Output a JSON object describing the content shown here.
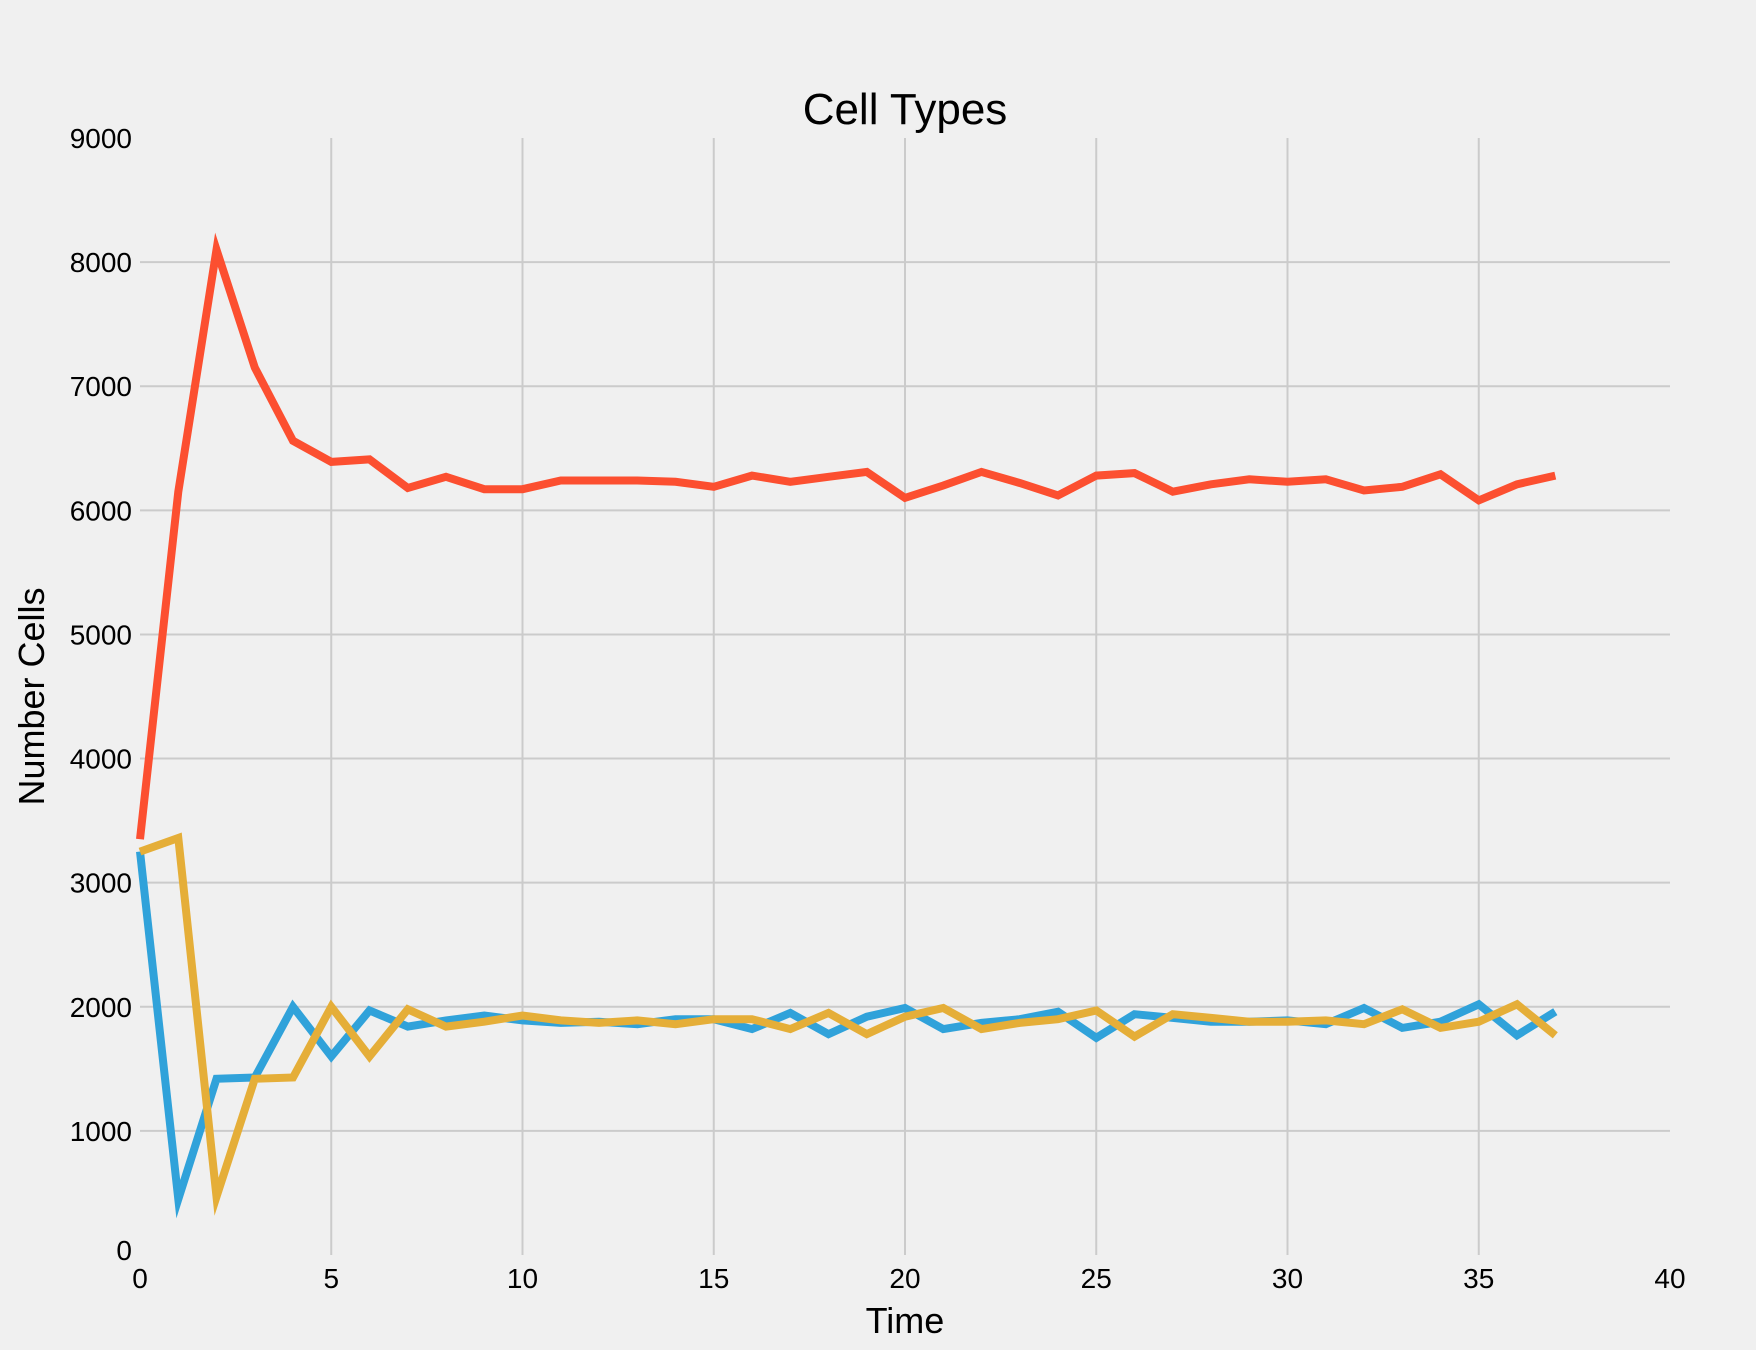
{
  "chart_data": {
    "type": "line",
    "title": "Cell Types",
    "xlabel": "Time",
    "ylabel": "Number Cells",
    "xlim": [
      0,
      40
    ],
    "ylim": [
      0,
      9000
    ],
    "xticks": [
      0,
      5,
      10,
      15,
      20,
      25,
      30,
      35,
      40
    ],
    "yticks": [
      0,
      1000,
      2000,
      3000,
      4000,
      5000,
      6000,
      7000,
      8000,
      9000
    ],
    "grid": true,
    "legend": "none",
    "series": [
      {
        "color": "#fc4f30",
        "x": [
          0,
          1,
          2,
          3,
          4,
          5,
          6,
          7,
          8,
          9,
          10,
          11,
          12,
          13,
          14,
          15,
          16,
          17,
          18,
          19,
          20,
          21,
          22,
          23,
          24,
          25,
          26,
          27,
          28,
          29,
          30,
          31,
          32,
          33,
          34,
          35,
          36,
          37
        ],
        "values": [
          3350,
          6150,
          8100,
          7150,
          6560,
          6390,
          6410,
          6180,
          6270,
          6170,
          6170,
          6240,
          6240,
          6240,
          6230,
          6190,
          6280,
          6230,
          6270,
          6310,
          6100,
          6200,
          6310,
          6220,
          6120,
          6280,
          6300,
          6150,
          6210,
          6250,
          6230,
          6250,
          6160,
          6190,
          6290,
          6080,
          6210,
          6280
        ]
      },
      {
        "color": "#30a2da",
        "x": [
          0,
          1,
          2,
          3,
          4,
          5,
          6,
          7,
          8,
          9,
          10,
          11,
          12,
          13,
          14,
          15,
          16,
          17,
          18,
          19,
          20,
          21,
          22,
          23,
          24,
          25,
          26,
          27,
          28,
          29,
          30,
          31,
          32,
          33,
          34,
          35,
          36,
          37
        ],
        "values": [
          3250,
          450,
          1420,
          1430,
          2000,
          1600,
          1970,
          1840,
          1890,
          1930,
          1890,
          1870,
          1880,
          1860,
          1900,
          1900,
          1820,
          1950,
          1780,
          1920,
          1990,
          1820,
          1870,
          1900,
          1960,
          1750,
          1940,
          1910,
          1880,
          1880,
          1890,
          1860,
          1990,
          1830,
          1880,
          2020,
          1770,
          1960
        ]
      },
      {
        "color": "#e5ae38",
        "x": [
          0,
          1,
          2,
          3,
          4,
          5,
          6,
          7,
          8,
          9,
          10,
          11,
          12,
          13,
          14,
          15,
          16,
          17,
          18,
          19,
          20,
          21,
          22,
          23,
          24,
          25,
          26,
          27,
          28,
          29,
          30,
          31,
          32,
          33,
          34,
          35,
          36,
          37
        ],
        "values": [
          3250,
          3360,
          470,
          1420,
          1430,
          2000,
          1600,
          1980,
          1840,
          1880,
          1930,
          1890,
          1870,
          1890,
          1860,
          1900,
          1900,
          1820,
          1950,
          1780,
          1920,
          1990,
          1820,
          1870,
          1900,
          1970,
          1760,
          1940,
          1910,
          1880,
          1880,
          1890,
          1860,
          1980,
          1830,
          1880,
          2020,
          1770
        ]
      }
    ]
  }
}
